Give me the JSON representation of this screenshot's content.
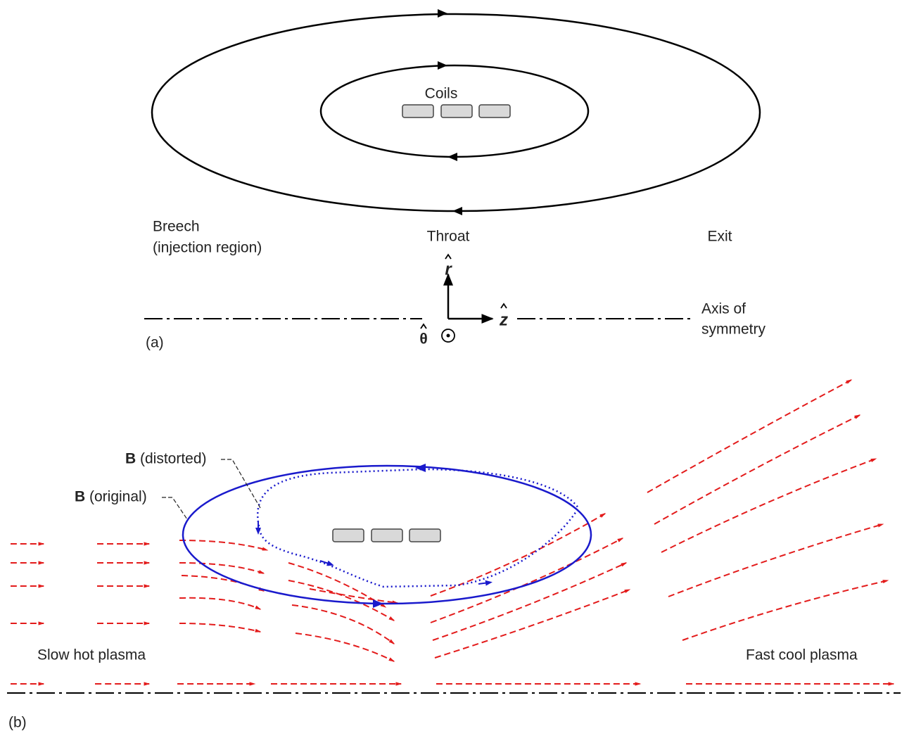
{
  "panel_a": {
    "label": "(a)",
    "coils_label": "Coils",
    "regions": {
      "breech": "Breech",
      "breech_note": "(injection region)",
      "throat": "Throat",
      "exit": "Exit"
    },
    "axes": {
      "r": "r",
      "z": "z",
      "theta": "θ"
    },
    "axis_label": [
      "Axis of",
      "symmetry"
    ]
  },
  "panel_b": {
    "label": "(b)",
    "field_distorted": {
      "symbol": "B",
      "note": "(distorted)"
    },
    "field_original": {
      "symbol": "B",
      "note": "(original)"
    },
    "upstream": "Slow hot plasma",
    "downstream": "Fast cool plasma"
  }
}
